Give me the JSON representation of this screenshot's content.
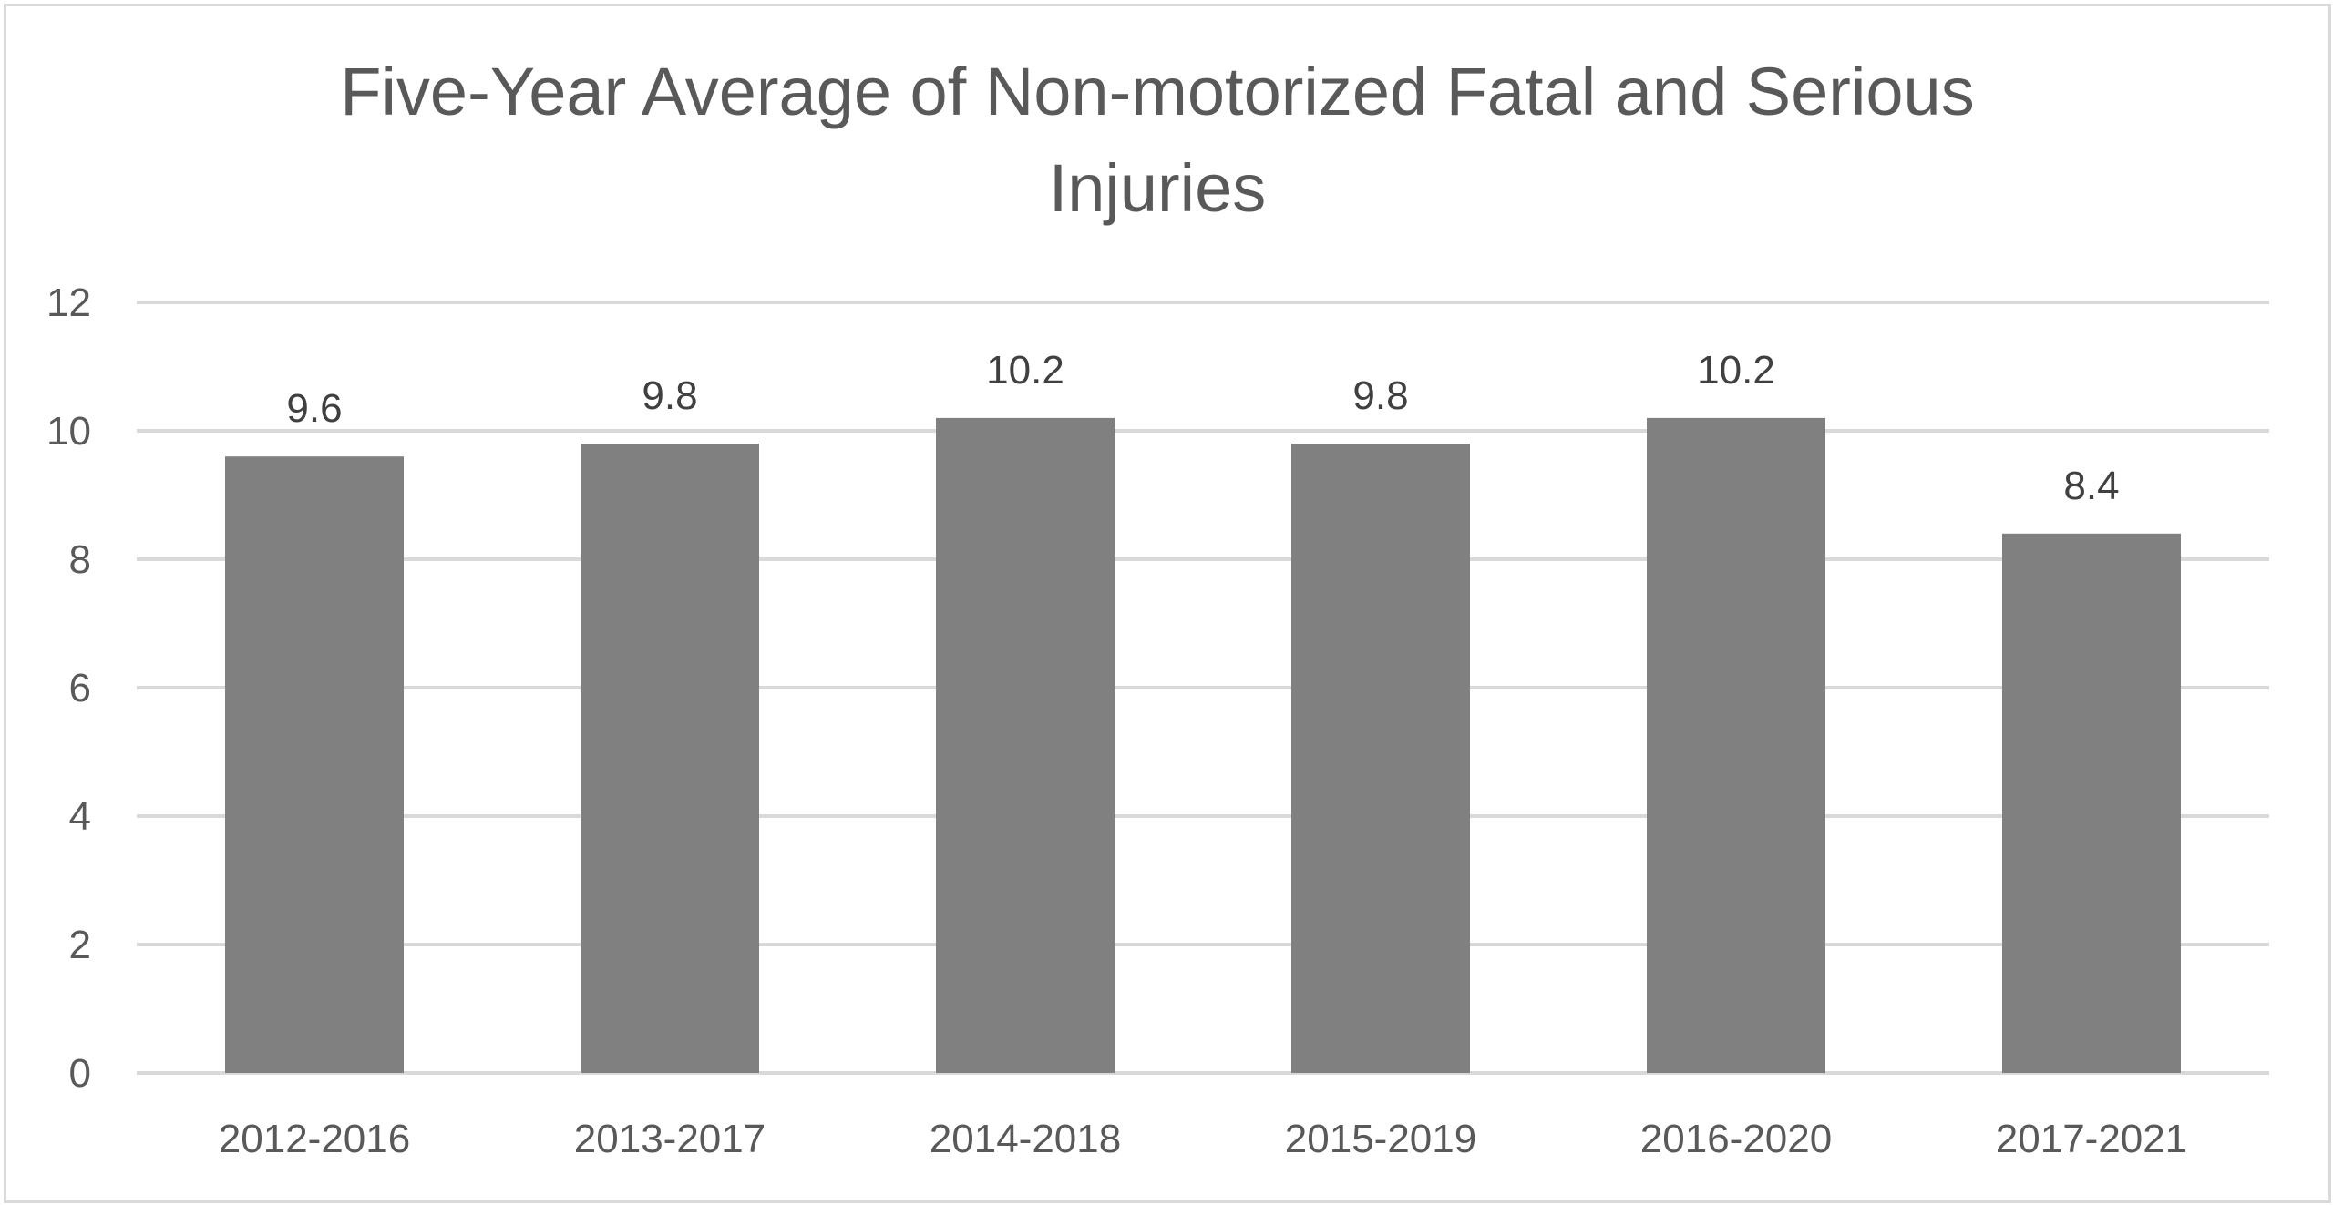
{
  "chart_data": {
    "type": "bar",
    "title": "Five-Year Average of Non-motorized Fatal and Serious Injuries",
    "categories": [
      "2012-2016",
      "2013-2017",
      "2014-2018",
      "2015-2019",
      "2016-2020",
      "2017-2021"
    ],
    "values": [
      9.6,
      9.8,
      10.2,
      9.8,
      10.2,
      8.4
    ],
    "data_labels": [
      "9.6",
      "9.8",
      "10.2",
      "9.8",
      "10.2",
      "8.4"
    ],
    "xlabel": "",
    "ylabel": "",
    "ylim": [
      0,
      12
    ],
    "yticks": [
      0,
      2,
      4,
      6,
      8,
      10,
      12
    ],
    "grid": true,
    "legend": "none",
    "bar_color": "#808080",
    "grid_color": "#d9d9d9"
  }
}
